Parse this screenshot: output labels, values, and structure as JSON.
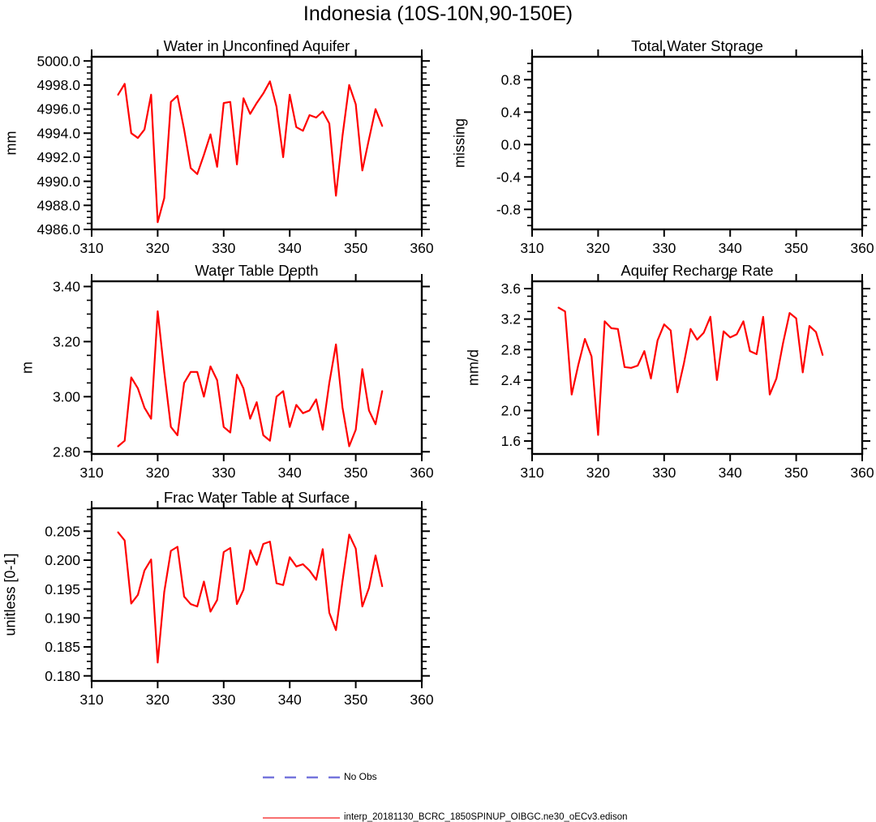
{
  "title": "Indonesia (10S-10N,90-150E)",
  "series_color": "#FF0000",
  "axis_color": "#000000",
  "chart_data": [
    {
      "type": "line",
      "title": "Water in Unconfined Aquifer",
      "ylabel": "mm",
      "col": 0,
      "row": 0,
      "xlim": [
        310,
        360
      ],
      "xticks": [
        "310",
        "320",
        "330",
        "340",
        "350",
        "360"
      ],
      "ylim": [
        4986.0,
        5000.35
      ],
      "yticks": [
        4986,
        4988,
        4990,
        4992,
        4994,
        4996,
        4998,
        5000
      ],
      "ytick_labels": [
        "4986.0",
        "4988.0",
        "4990.0",
        "4992.0",
        "4994.0",
        "4996.0",
        "4998.0",
        "5000.0"
      ],
      "yminor_step": 0.5,
      "x_start": 314,
      "x_step": 1,
      "values": [
        4997.2,
        4998.1,
        4994.0,
        4993.6,
        4994.3,
        4997.2,
        4986.6,
        4988.6,
        4996.6,
        4997.1,
        4994.3,
        4991.1,
        4990.6,
        4992.2,
        4993.9,
        4991.2,
        4996.5,
        4996.6,
        4991.4,
        4996.9,
        4995.6,
        4996.5,
        4997.3,
        4998.3,
        4996.2,
        4992.0,
        4997.2,
        4994.5,
        4994.2,
        4995.5,
        4995.3,
        4995.8,
        4994.8,
        4988.8,
        4993.8,
        4998.0,
        4996.4,
        4990.9,
        4993.5,
        4996.0,
        4994.6
      ]
    },
    {
      "type": "line",
      "title": "Total Water Storage",
      "ylabel": "missing",
      "col": 1,
      "row": 0,
      "xlim": [
        310,
        360
      ],
      "xticks": [
        "310",
        "320",
        "330",
        "340",
        "350",
        "360"
      ],
      "ylim": [
        -1.047,
        1.083
      ],
      "yticks": [
        -0.8,
        -0.4,
        0.0,
        0.4,
        0.8
      ],
      "ytick_labels": [
        "-0.8",
        "-0.4",
        "0.0",
        "0.4",
        "0.8"
      ],
      "yminor_step": 0.1,
      "x_start": 314,
      "x_step": 1,
      "values": []
    },
    {
      "type": "line",
      "title": "Water Table Depth",
      "ylabel": "m",
      "col": 0,
      "row": 1,
      "xlim": [
        310,
        360
      ],
      "xticks": [
        "310",
        "320",
        "330",
        "340",
        "350",
        "360"
      ],
      "ylim": [
        2.792,
        3.419
      ],
      "yticks": [
        2.8,
        3.0,
        3.2,
        3.4
      ],
      "ytick_labels": [
        "2.80",
        "3.00",
        "3.20",
        "3.40"
      ],
      "yminor_step": 0.05,
      "x_start": 314,
      "x_step": 1,
      "values": [
        2.82,
        2.84,
        3.07,
        3.03,
        2.96,
        2.92,
        3.31,
        3.09,
        2.89,
        2.86,
        3.05,
        3.09,
        3.09,
        3.0,
        3.11,
        3.06,
        2.89,
        2.87,
        3.08,
        3.03,
        2.92,
        2.98,
        2.86,
        2.84,
        3.0,
        3.02,
        2.89,
        2.97,
        2.94,
        2.95,
        2.99,
        2.88,
        3.05,
        3.19,
        2.96,
        2.82,
        2.88,
        3.1,
        2.95,
        2.9,
        3.02
      ]
    },
    {
      "type": "line",
      "title": "Aquifer Recharge Rate",
      "ylabel": "mm/d",
      "col": 1,
      "row": 1,
      "xlim": [
        310,
        360
      ],
      "xticks": [
        "310",
        "320",
        "330",
        "340",
        "350",
        "360"
      ],
      "ylim": [
        1.43,
        3.696
      ],
      "yticks": [
        1.6,
        2.0,
        2.4,
        2.8,
        3.2,
        3.6
      ],
      "ytick_labels": [
        "1.6",
        "2.0",
        "2.4",
        "2.8",
        "3.2",
        "3.6"
      ],
      "yminor_step": 0.1,
      "x_start": 314,
      "x_step": 1,
      "values": [
        3.35,
        3.3,
        2.21,
        2.6,
        2.94,
        2.71,
        1.68,
        3.17,
        3.08,
        3.07,
        2.57,
        2.56,
        2.59,
        2.78,
        2.42,
        2.92,
        3.13,
        3.05,
        2.24,
        2.62,
        3.07,
        2.93,
        3.02,
        3.23,
        2.4,
        3.04,
        2.96,
        3.0,
        3.17,
        2.78,
        2.74,
        3.23,
        2.21,
        2.42,
        2.88,
        3.28,
        3.21,
        2.5,
        3.11,
        3.03,
        2.73
      ]
    },
    {
      "type": "line",
      "title": "Frac Water Table at Surface",
      "ylabel": "unitless [0-1]",
      "col": 0,
      "row": 2,
      "xlim": [
        310,
        360
      ],
      "xticks": [
        "310",
        "320",
        "330",
        "340",
        "350",
        "360"
      ],
      "ylim": [
        0.17912,
        0.20896
      ],
      "yticks": [
        0.18,
        0.185,
        0.19,
        0.195,
        0.2,
        0.205
      ],
      "ytick_labels": [
        "0.180",
        "0.185",
        "0.190",
        "0.195",
        "0.200",
        "0.205"
      ],
      "yminor_step": 0.00125,
      "x_start": 314,
      "x_step": 1,
      "values": [
        0.2048,
        0.2034,
        0.1925,
        0.194,
        0.1982,
        0.2001,
        0.1823,
        0.1945,
        0.2016,
        0.2023,
        0.1937,
        0.1924,
        0.192,
        0.1963,
        0.1911,
        0.1931,
        0.2014,
        0.2021,
        0.1924,
        0.1949,
        0.2017,
        0.1992,
        0.2028,
        0.2032,
        0.196,
        0.1957,
        0.2005,
        0.1989,
        0.1993,
        0.1982,
        0.1966,
        0.2019,
        0.1909,
        0.1879,
        0.1964,
        0.2044,
        0.202,
        0.192,
        0.1952,
        0.2008,
        0.1955
      ]
    }
  ],
  "legend": {
    "entries": [
      {
        "label": "No Obs",
        "color": "#7575DC",
        "style": "dashed"
      },
      {
        "label": "interp_20181130_BCRC_1850SPINUP_OIBGC.ne30_oECv3.edison",
        "color": "#F87070",
        "style": "solid"
      }
    ]
  }
}
